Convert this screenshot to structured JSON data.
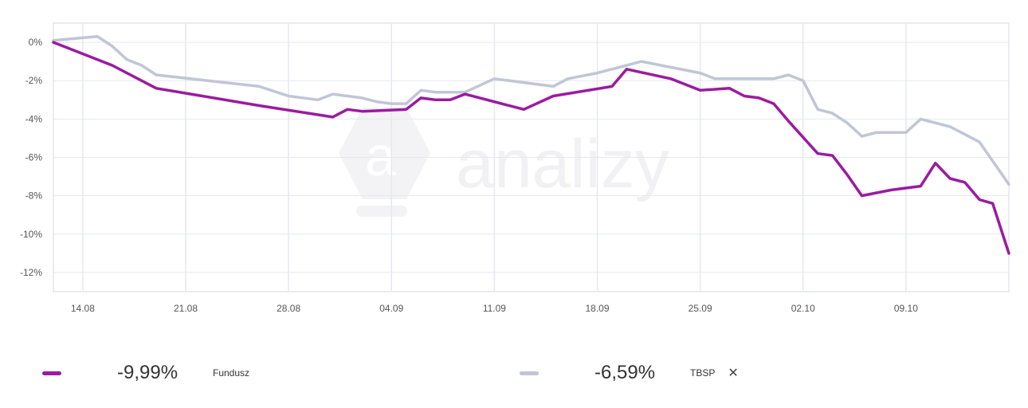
{
  "chart_data": {
    "type": "line",
    "watermark": "analizy",
    "ylim": [
      -13,
      1
    ],
    "yticks": [
      0,
      -2,
      -4,
      -6,
      -8,
      -10,
      -12
    ],
    "ytick_labels": [
      "0%",
      "-2%",
      "-4%",
      "-6%",
      "-8%",
      "-10%",
      "-12%"
    ],
    "x_range": [
      -2,
      63
    ],
    "xticks": [
      0,
      7,
      14,
      21,
      28,
      35,
      42,
      49,
      56
    ],
    "xtick_labels": [
      "14.08",
      "21.08",
      "28.08",
      "04.09",
      "11.09",
      "18.09",
      "25.09",
      "02.10",
      "09.10"
    ],
    "grid": true,
    "series": [
      {
        "name": "Fundusz",
        "color": "#9b1ba0",
        "x": [
          -2,
          2,
          5,
          12,
          17,
          18,
          19,
          22,
          23,
          24,
          25,
          26,
          30,
          32,
          36,
          37,
          40,
          42,
          44,
          45,
          46,
          47,
          48,
          50,
          51,
          52,
          53,
          55,
          57,
          58,
          59,
          60,
          61,
          61.9,
          63
        ],
        "y": [
          0,
          -1.2,
          -2.4,
          -3.3,
          -3.9,
          -3.5,
          -3.6,
          -3.5,
          -2.9,
          -3.0,
          -3.0,
          -2.7,
          -3.5,
          -2.8,
          -2.3,
          -1.4,
          -1.9,
          -2.5,
          -2.4,
          -2.8,
          -2.9,
          -3.2,
          -4.1,
          -5.8,
          -5.9,
          -6.9,
          -8.0,
          -7.7,
          -7.5,
          -6.3,
          -7.1,
          -7.3,
          -8.2,
          -8.4,
          -11.0
        ]
      },
      {
        "name": "TBSP",
        "color": "#c1c6d6",
        "x": [
          -2,
          1,
          2,
          3,
          4,
          5,
          12,
          14,
          16,
          17,
          18,
          19,
          20,
          21,
          22,
          23,
          24,
          26,
          28,
          32,
          33,
          35,
          37,
          38,
          42,
          43,
          44,
          45,
          46,
          47,
          48,
          49,
          50,
          51,
          52,
          53,
          54,
          55,
          56,
          57,
          58,
          59,
          60,
          61,
          63
        ],
        "y": [
          0.1,
          0.3,
          -0.2,
          -0.9,
          -1.2,
          -1.7,
          -2.3,
          -2.8,
          -3.0,
          -2.7,
          -2.8,
          -2.9,
          -3.1,
          -3.2,
          -3.2,
          -2.5,
          -2.6,
          -2.6,
          -1.9,
          -2.3,
          -1.9,
          -1.6,
          -1.2,
          -1.0,
          -1.6,
          -1.9,
          -1.9,
          -1.9,
          -1.9,
          -1.9,
          -1.7,
          -2.0,
          -3.5,
          -3.7,
          -4.2,
          -4.9,
          -4.7,
          -4.7,
          -4.7,
          -4.0,
          -4.2,
          -4.4,
          -4.8,
          -5.2,
          -7.4
        ]
      }
    ]
  },
  "legend": [
    {
      "value": "-9,99%",
      "name": "Fundusz",
      "color": "#9b1ba0"
    },
    {
      "value": "-6,59%",
      "name": "TBSP",
      "color": "#c1c6d6",
      "close": "✕"
    }
  ]
}
